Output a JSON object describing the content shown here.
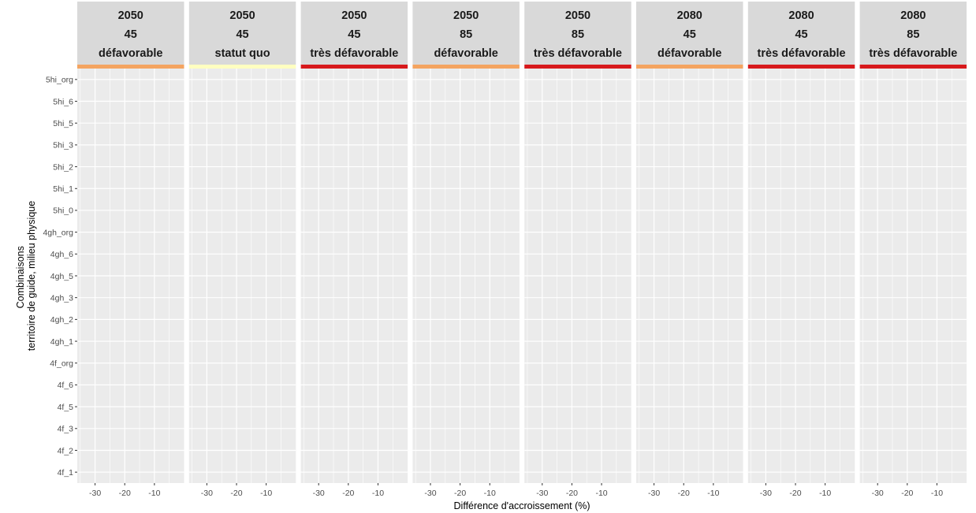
{
  "chart_data": {
    "type": "scatter",
    "xlabel": "Différence d'accroissement (%)",
    "ylabel": [
      "Combinaisons",
      "territoire de guide, milieu physique"
    ],
    "xlim": [
      -36,
      0
    ],
    "x_ticks": [
      -30,
      -20,
      -10
    ],
    "x_tick_labels": [
      "-30",
      "-20",
      "-10"
    ],
    "categories": [
      "4f_1",
      "4f_2",
      "4f_3",
      "4f_5",
      "4f_6",
      "4f_org",
      "4gh_1",
      "4gh_2",
      "4gh_3",
      "4gh_5",
      "4gh_6",
      "4gh_org",
      "5hi_0",
      "5hi_1",
      "5hi_2",
      "5hi_3",
      "5hi_5",
      "5hi_6",
      "5hi_org"
    ],
    "grid": true,
    "panel_background": "#ebebeb",
    "strip_background": "#d9d9d9",
    "grid_color": "#ffffff",
    "facets": [
      {
        "year": "2050",
        "rcp": "45",
        "scenario": "défavorable",
        "color": "#f4a460"
      },
      {
        "year": "2050",
        "rcp": "45",
        "scenario": "statut quo",
        "color": "#ffffc0"
      },
      {
        "year": "2050",
        "rcp": "45",
        "scenario": "très défavorable",
        "color": "#d7191c"
      },
      {
        "year": "2050",
        "rcp": "85",
        "scenario": "défavorable",
        "color": "#f4a460"
      },
      {
        "year": "2050",
        "rcp": "85",
        "scenario": "très défavorable",
        "color": "#d7191c"
      },
      {
        "year": "2080",
        "rcp": "45",
        "scenario": "défavorable",
        "color": "#f4a460"
      },
      {
        "year": "2080",
        "rcp": "45",
        "scenario": "très défavorable",
        "color": "#d7191c"
      },
      {
        "year": "2080",
        "rcp": "85",
        "scenario": "très défavorable",
        "color": "#d7191c"
      }
    ],
    "points": []
  }
}
